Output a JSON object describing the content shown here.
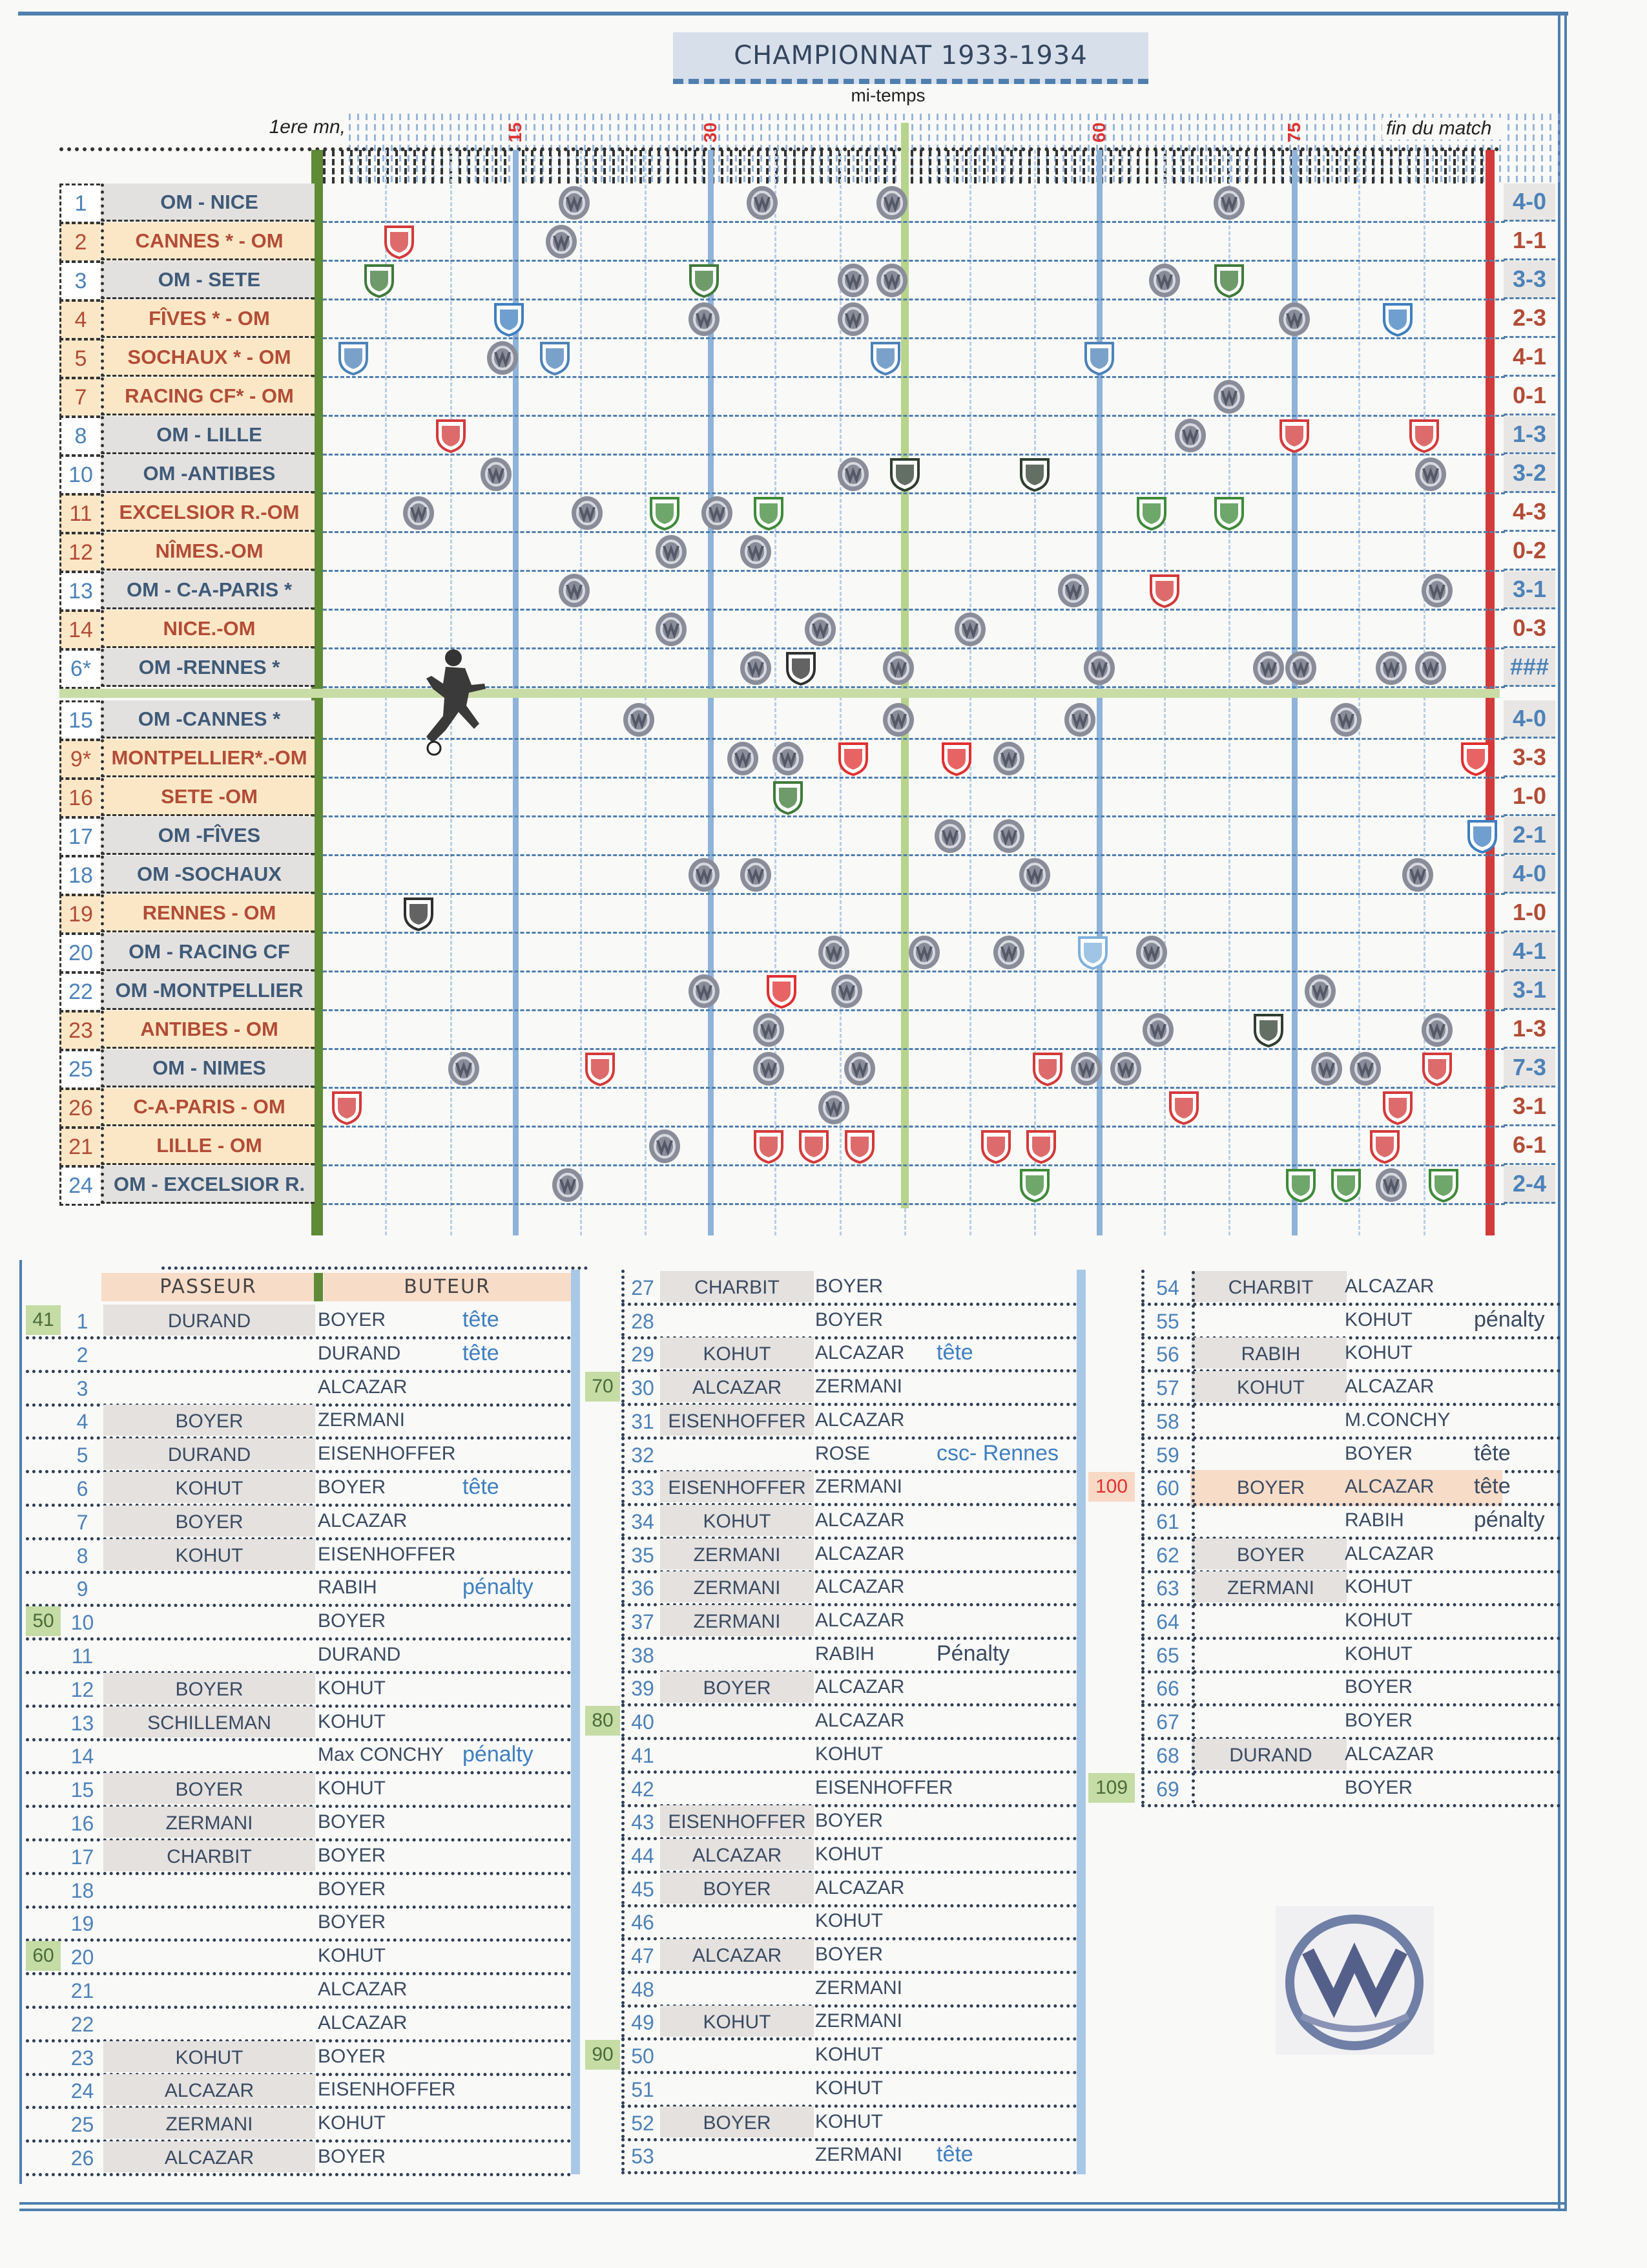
{
  "header": {
    "title": "CHAMPIONNAT 1933-1934",
    "halftime_label": "mi-temps",
    "first_minute_label": "1ere mn,",
    "end_label": "fin du match",
    "minute_marks": [
      {
        "label": "15",
        "minute": 15
      },
      {
        "label": "30",
        "minute": 30
      },
      {
        "label": "60",
        "minute": 60
      },
      {
        "label": "75",
        "minute": 75
      }
    ],
    "halftime_minute": 45,
    "full_time_minute": 90
  },
  "colors": {
    "home_text": "#4d82b8",
    "away_text": "#b24c36",
    "away_bg": "#fbe7c6",
    "start_line": "#5f8a36",
    "halftime_line": "#b7d48c",
    "end_line": "#d33a3a",
    "om_logo": "#8a8d99"
  },
  "matches": [
    {
      "num": "1",
      "label": "OM - NICE",
      "venue": "home",
      "score": "4-0",
      "opp_color": "#d33a3a",
      "goals": [
        {
          "m": 19.5,
          "t": "om"
        },
        {
          "m": 34,
          "t": "om"
        },
        {
          "m": 44,
          "t": "om"
        },
        {
          "m": 70,
          "t": "om"
        }
      ]
    },
    {
      "num": "2",
      "label": "CANNES * - OM",
      "venue": "away",
      "score": "1-1",
      "opp_color": "#d33a3a",
      "goals": [
        {
          "m": 6,
          "t": "opp"
        },
        {
          "m": 18.5,
          "t": "om"
        }
      ]
    },
    {
      "num": "3",
      "label": "OM - SETE",
      "venue": "home",
      "score": "3-3",
      "opp_color": "#3f7a3a",
      "goals": [
        {
          "m": 4.5,
          "t": "opp"
        },
        {
          "m": 29.5,
          "t": "opp"
        },
        {
          "m": 44,
          "t": "om"
        },
        {
          "m": 41,
          "t": "om"
        },
        {
          "m": 65,
          "t": "om"
        },
        {
          "m": 70,
          "t": "opp"
        }
      ]
    },
    {
      "num": "4",
      "label": "FÎVES * - OM",
      "venue": "away",
      "score": "2-3",
      "opp_color": "#3f7fbf",
      "goals": [
        {
          "m": 14.5,
          "t": "opp"
        },
        {
          "m": 29.5,
          "t": "om"
        },
        {
          "m": 41,
          "t": "om"
        },
        {
          "m": 75,
          "t": "om"
        },
        {
          "m": 83,
          "t": "opp"
        }
      ]
    },
    {
      "num": "5",
      "label": "SOCHAUX * - OM",
      "venue": "away",
      "score": "4-1",
      "opp_color": "#4d82b8",
      "goals": [
        {
          "m": 2.5,
          "t": "opp"
        },
        {
          "m": 14,
          "t": "om"
        },
        {
          "m": 18,
          "t": "opp"
        },
        {
          "m": 43.5,
          "t": "opp"
        },
        {
          "m": 60,
          "t": "opp"
        }
      ]
    },
    {
      "num": "7",
      "label": "RACING CF* - OM",
      "venue": "away",
      "score": "0-1",
      "opp_color": "#4d82b8",
      "goals": [
        {
          "m": 70,
          "t": "om"
        }
      ]
    },
    {
      "num": "8",
      "label": "OM - LILLE",
      "venue": "home",
      "score": "1-3",
      "opp_color": "#d33a3a",
      "goals": [
        {
          "m": 10,
          "t": "opp"
        },
        {
          "m": 67,
          "t": "om"
        },
        {
          "m": 75,
          "t": "opp"
        },
        {
          "m": 85,
          "t": "opp"
        }
      ]
    },
    {
      "num": "10",
      "label": "OM -ANTIBES",
      "venue": "home",
      "score": "3-2",
      "opp_color": "#2f3f2f",
      "goals": [
        {
          "m": 13.5,
          "t": "om"
        },
        {
          "m": 41,
          "t": "om"
        },
        {
          "m": 45,
          "t": "opp"
        },
        {
          "m": 55,
          "t": "opp"
        },
        {
          "m": 85.5,
          "t": "om"
        }
      ]
    },
    {
      "num": "11",
      "label": "EXCELSIOR R.-OM",
      "venue": "away",
      "score": "4-3",
      "opp_color": "#3f8a3a",
      "goals": [
        {
          "m": 7.5,
          "t": "om"
        },
        {
          "m": 20.5,
          "t": "om"
        },
        {
          "m": 26.5,
          "t": "opp"
        },
        {
          "m": 30.5,
          "t": "om"
        },
        {
          "m": 34.5,
          "t": "opp"
        },
        {
          "m": 64,
          "t": "opp"
        },
        {
          "m": 70,
          "t": "opp"
        }
      ]
    },
    {
      "num": "12",
      "label": "NÎMES.-OM",
      "venue": "away",
      "score": "0-2",
      "opp_color": "#d33a3a",
      "goals": [
        {
          "m": 27,
          "t": "om"
        },
        {
          "m": 33.5,
          "t": "om"
        }
      ]
    },
    {
      "num": "13",
      "label": "OM - C-A-PARIS *",
      "venue": "home",
      "score": "3-1",
      "opp_color": "#d33a3a",
      "goals": [
        {
          "m": 19.5,
          "t": "om"
        },
        {
          "m": 58,
          "t": "om"
        },
        {
          "m": 65,
          "t": "opp"
        },
        {
          "m": 86,
          "t": "om"
        }
      ]
    },
    {
      "num": "14",
      "label": "NICE.-OM",
      "venue": "away",
      "score": "0-3",
      "opp_color": "#d33a3a",
      "goals": [
        {
          "m": 27,
          "t": "om"
        },
        {
          "m": 38.5,
          "t": "om"
        },
        {
          "m": 50,
          "t": "om"
        }
      ]
    },
    {
      "num": "6*",
      "label": "OM -RENNES *",
      "venue": "home",
      "score": "###",
      "opp_color": "#2f2f2f",
      "goals": [
        {
          "m": 33.5,
          "t": "om"
        },
        {
          "m": 37,
          "t": "opp"
        },
        {
          "m": 44.5,
          "t": "om"
        },
        {
          "m": 60,
          "t": "om"
        },
        {
          "m": 73,
          "t": "om"
        },
        {
          "m": 75.5,
          "t": "om"
        },
        {
          "m": 82.5,
          "t": "om"
        },
        {
          "m": 85.5,
          "t": "om"
        }
      ]
    },
    {
      "num": "15",
      "label": "OM -CANNES *",
      "venue": "home",
      "score": "4-0",
      "opp_color": "#d33a3a",
      "goals": [
        {
          "m": 24.5,
          "t": "om"
        },
        {
          "m": 44.5,
          "t": "om"
        },
        {
          "m": 58.5,
          "t": "om"
        },
        {
          "m": 79,
          "t": "om"
        }
      ]
    },
    {
      "num": "9*",
      "label": "MONTPELLIER*.-OM",
      "venue": "away",
      "score": "3-3",
      "opp_color": "#e03030",
      "goals": [
        {
          "m": 32.5,
          "t": "om"
        },
        {
          "m": 36,
          "t": "om"
        },
        {
          "m": 41,
          "t": "opp"
        },
        {
          "m": 49,
          "t": "opp"
        },
        {
          "m": 53,
          "t": "om"
        },
        {
          "m": 89,
          "t": "opp"
        }
      ]
    },
    {
      "num": "16",
      "label": "SETE  -OM",
      "venue": "away",
      "score": "1-0",
      "opp_color": "#3f7a3a",
      "goals": [
        {
          "m": 36,
          "t": "opp"
        }
      ]
    },
    {
      "num": "17",
      "label": "OM -FÎVES",
      "venue": "home",
      "score": "2-1",
      "opp_color": "#3f7fbf",
      "goals": [
        {
          "m": 48.5,
          "t": "om"
        },
        {
          "m": 53,
          "t": "om"
        },
        {
          "m": 89.5,
          "t": "opp"
        }
      ]
    },
    {
      "num": "18",
      "label": "OM -SOCHAUX",
      "venue": "home",
      "score": "4-0",
      "opp_color": "#4d82b8",
      "goals": [
        {
          "m": 29.5,
          "t": "om"
        },
        {
          "m": 33.5,
          "t": "om"
        },
        {
          "m": 55,
          "t": "om"
        },
        {
          "m": 84.5,
          "t": "om"
        }
      ]
    },
    {
      "num": "19",
      "label": "RENNES  - OM",
      "venue": "away",
      "score": "1-0",
      "opp_color": "#2f2f2f",
      "goals": [
        {
          "m": 7.5,
          "t": "opp"
        }
      ]
    },
    {
      "num": "20",
      "label": "OM - RACING CF",
      "venue": "home",
      "score": "4-1",
      "opp_color": "#7fb0dc",
      "goals": [
        {
          "m": 39.5,
          "t": "om"
        },
        {
          "m": 46.5,
          "t": "om"
        },
        {
          "m": 53,
          "t": "om"
        },
        {
          "m": 59.5,
          "t": "opp"
        },
        {
          "m": 64,
          "t": "om"
        }
      ]
    },
    {
      "num": "22",
      "label": "OM -MONTPELLIER",
      "venue": "home",
      "score": "3-1",
      "opp_color": "#e03030",
      "goals": [
        {
          "m": 29.5,
          "t": "om"
        },
        {
          "m": 35.5,
          "t": "opp"
        },
        {
          "m": 40.5,
          "t": "om"
        },
        {
          "m": 77,
          "t": "om"
        }
      ]
    },
    {
      "num": "23",
      "label": "ANTIBES - OM",
      "venue": "away",
      "score": "1-3",
      "opp_color": "#2f3f2f",
      "goals": [
        {
          "m": 34.5,
          "t": "om"
        },
        {
          "m": 64.5,
          "t": "om"
        },
        {
          "m": 73,
          "t": "opp"
        },
        {
          "m": 86,
          "t": "om"
        }
      ]
    },
    {
      "num": "25",
      "label": "OM - NIMES",
      "venue": "home",
      "score": "7-3",
      "opp_color": "#d33a3a",
      "goals": [
        {
          "m": 11,
          "t": "om"
        },
        {
          "m": 21.5,
          "t": "opp"
        },
        {
          "m": 34.5,
          "t": "om"
        },
        {
          "m": 41.5,
          "t": "om"
        },
        {
          "m": 56,
          "t": "opp"
        },
        {
          "m": 59,
          "t": "om"
        },
        {
          "m": 62,
          "t": "om"
        },
        {
          "m": 77.5,
          "t": "om"
        },
        {
          "m": 80.5,
          "t": "om"
        },
        {
          "m": 86,
          "t": "opp"
        }
      ]
    },
    {
      "num": "26",
      "label": "C-A-PARIS - OM",
      "venue": "away",
      "score": "3-1",
      "opp_color": "#d33a3a",
      "goals": [
        {
          "m": 2,
          "t": "opp"
        },
        {
          "m": 39.5,
          "t": "om"
        },
        {
          "m": 66.5,
          "t": "opp"
        },
        {
          "m": 83,
          "t": "opp"
        }
      ]
    },
    {
      "num": "21",
      "label": "LILLE - OM",
      "venue": "away",
      "score": "6-1",
      "opp_color": "#d33a3a",
      "goals": [
        {
          "m": 26.5,
          "t": "om"
        },
        {
          "m": 34.5,
          "t": "opp"
        },
        {
          "m": 38,
          "t": "opp"
        },
        {
          "m": 41.5,
          "t": "opp"
        },
        {
          "m": 52,
          "t": "opp"
        },
        {
          "m": 55.5,
          "t": "opp"
        },
        {
          "m": 82,
          "t": "opp"
        }
      ]
    },
    {
      "num": "24",
      "label": "OM - EXCELSIOR R.",
      "venue": "home",
      "score": "2-4",
      "opp_color": "#3f8a3a",
      "goals": [
        {
          "m": 19,
          "t": "om"
        },
        {
          "m": 55,
          "t": "opp"
        },
        {
          "m": 75.5,
          "t": "opp"
        },
        {
          "m": 79,
          "t": "opp"
        },
        {
          "m": 82.5,
          "t": "om"
        },
        {
          "m": 86.5,
          "t": "opp"
        }
      ]
    }
  ],
  "scorers": {
    "passeur_header": "PASSEUR",
    "buteur_header": "BUTEUR",
    "goals": [
      {
        "n": "1",
        "passeur": "DURAND",
        "buteur": "BOYER",
        "note": "tête",
        "milestone": "41"
      },
      {
        "n": "2",
        "passeur": "",
        "buteur": "DURAND",
        "note": "tête"
      },
      {
        "n": "3",
        "passeur": "",
        "buteur": "ALCAZAR",
        "note": ""
      },
      {
        "n": "4",
        "passeur": "BOYER",
        "buteur": "ZERMANI",
        "note": ""
      },
      {
        "n": "5",
        "passeur": "DURAND",
        "buteur": "EISENHOFFER",
        "note": ""
      },
      {
        "n": "6",
        "passeur": "KOHUT",
        "buteur": "BOYER",
        "note": "tête"
      },
      {
        "n": "7",
        "passeur": "BOYER",
        "buteur": "ALCAZAR",
        "note": ""
      },
      {
        "n": "8",
        "passeur": "KOHUT",
        "buteur": "EISENHOFFER",
        "note": ""
      },
      {
        "n": "9",
        "passeur": "",
        "buteur": "RABIH",
        "note": "pénalty"
      },
      {
        "n": "10",
        "passeur": "",
        "buteur": "BOYER",
        "note": "",
        "milestone": "50"
      },
      {
        "n": "11",
        "passeur": "",
        "buteur": "DURAND",
        "note": ""
      },
      {
        "n": "12",
        "passeur": "BOYER",
        "buteur": "KOHUT",
        "note": ""
      },
      {
        "n": "13",
        "passeur": "SCHILLEMAN",
        "buteur": "KOHUT",
        "note": ""
      },
      {
        "n": "14",
        "passeur": "",
        "buteur": "Max CONCHY",
        "note": "pénalty"
      },
      {
        "n": "15",
        "passeur": "BOYER",
        "buteur": "KOHUT",
        "note": ""
      },
      {
        "n": "16",
        "passeur": "ZERMANI",
        "buteur": "BOYER",
        "note": ""
      },
      {
        "n": "17",
        "passeur": "CHARBIT",
        "buteur": "BOYER",
        "note": ""
      },
      {
        "n": "18",
        "passeur": "",
        "buteur": "BOYER",
        "note": ""
      },
      {
        "n": "19",
        "passeur": "",
        "buteur": "BOYER",
        "note": ""
      },
      {
        "n": "20",
        "passeur": "",
        "buteur": "KOHUT",
        "note": "",
        "milestone": "60"
      },
      {
        "n": "21",
        "passeur": "",
        "buteur": "ALCAZAR",
        "note": ""
      },
      {
        "n": "22",
        "passeur": "",
        "buteur": "ALCAZAR",
        "note": ""
      },
      {
        "n": "23",
        "passeur": "KOHUT",
        "buteur": "BOYER",
        "note": ""
      },
      {
        "n": "24",
        "passeur": "ALCAZAR",
        "buteur": "EISENHOFFER",
        "note": ""
      },
      {
        "n": "25",
        "passeur": "ZERMANI",
        "buteur": "KOHUT",
        "note": ""
      },
      {
        "n": "26",
        "passeur": "ALCAZAR",
        "buteur": "BOYER",
        "note": ""
      },
      {
        "n": "27",
        "passeur": "CHARBIT",
        "buteur": "BOYER",
        "note": ""
      },
      {
        "n": "28",
        "passeur": "",
        "buteur": "BOYER",
        "note": ""
      },
      {
        "n": "29",
        "passeur": "KOHUT",
        "buteur": "ALCAZAR",
        "note": "tête"
      },
      {
        "n": "30",
        "passeur": "ALCAZAR",
        "buteur": "ZERMANI",
        "note": "",
        "milestone": "70"
      },
      {
        "n": "31",
        "passeur": "EISENHOFFER",
        "buteur": "ALCAZAR",
        "note": ""
      },
      {
        "n": "32",
        "passeur": "",
        "buteur": "ROSE",
        "note": "csc- Rennes"
      },
      {
        "n": "33",
        "passeur": "EISENHOFFER",
        "buteur": "ZERMANI",
        "note": ""
      },
      {
        "n": "34",
        "passeur": "KOHUT",
        "buteur": "ALCAZAR",
        "note": ""
      },
      {
        "n": "35",
        "passeur": "ZERMANI",
        "buteur": "ALCAZAR",
        "note": ""
      },
      {
        "n": "36",
        "passeur": "ZERMANI",
        "buteur": "ALCAZAR",
        "note": ""
      },
      {
        "n": "37",
        "passeur": "ZERMANI",
        "buteur": "ALCAZAR",
        "note": ""
      },
      {
        "n": "38",
        "passeur": "",
        "buteur": "RABIH",
        "note": "Pénalty"
      },
      {
        "n": "39",
        "passeur": "BOYER",
        "buteur": "ALCAZAR",
        "note": ""
      },
      {
        "n": "40",
        "passeur": "",
        "buteur": "ALCAZAR",
        "note": "",
        "milestone": "80"
      },
      {
        "n": "41",
        "passeur": "",
        "buteur": "KOHUT",
        "note": ""
      },
      {
        "n": "42",
        "passeur": "",
        "buteur": "EISENHOFFER",
        "note": ""
      },
      {
        "n": "43",
        "passeur": "EISENHOFFER",
        "buteur": "BOYER",
        "note": ""
      },
      {
        "n": "44",
        "passeur": "ALCAZAR",
        "buteur": "KOHUT",
        "note": ""
      },
      {
        "n": "45",
        "passeur": "BOYER",
        "buteur": "ALCAZAR",
        "note": ""
      },
      {
        "n": "46",
        "passeur": "",
        "buteur": "KOHUT",
        "note": ""
      },
      {
        "n": "47",
        "passeur": "ALCAZAR",
        "buteur": "BOYER",
        "note": ""
      },
      {
        "n": "48",
        "passeur": "",
        "buteur": "ZERMANI",
        "note": ""
      },
      {
        "n": "49",
        "passeur": "KOHUT",
        "buteur": "ZERMANI",
        "note": ""
      },
      {
        "n": "50",
        "passeur": "",
        "buteur": "KOHUT",
        "note": "",
        "milestone": "90"
      },
      {
        "n": "51",
        "passeur": "",
        "buteur": "KOHUT",
        "note": ""
      },
      {
        "n": "52",
        "passeur": "BOYER",
        "buteur": "KOHUT",
        "note": ""
      },
      {
        "n": "53",
        "passeur": "",
        "buteur": "ZERMANI",
        "note": "tête"
      },
      {
        "n": "54",
        "passeur": "CHARBIT",
        "buteur": "ALCAZAR",
        "note": ""
      },
      {
        "n": "55",
        "passeur": "",
        "buteur": "KOHUT",
        "note": "pénalty"
      },
      {
        "n": "56",
        "passeur": "RABIH",
        "buteur": "KOHUT",
        "note": ""
      },
      {
        "n": "57",
        "passeur": "KOHUT",
        "buteur": "ALCAZAR",
        "note": ""
      },
      {
        "n": "58",
        "passeur": "",
        "buteur": "M.CONCHY",
        "note": ""
      },
      {
        "n": "59",
        "passeur": "",
        "buteur": "BOYER",
        "note": "tête"
      },
      {
        "n": "60",
        "passeur": "BOYER",
        "buteur": "ALCAZAR",
        "note": "tête",
        "milestone": "100",
        "highlight": true
      },
      {
        "n": "61",
        "passeur": "",
        "buteur": "RABIH",
        "note": "pénalty"
      },
      {
        "n": "62",
        "passeur": "BOYER",
        "buteur": "ALCAZAR",
        "note": ""
      },
      {
        "n": "63",
        "passeur": "ZERMANI",
        "buteur": "KOHUT",
        "note": ""
      },
      {
        "n": "64",
        "passeur": "",
        "buteur": "KOHUT",
        "note": ""
      },
      {
        "n": "65",
        "passeur": "",
        "buteur": "KOHUT",
        "note": ""
      },
      {
        "n": "66",
        "passeur": "",
        "buteur": "BOYER",
        "note": ""
      },
      {
        "n": "67",
        "passeur": "",
        "buteur": "BOYER",
        "note": ""
      },
      {
        "n": "68",
        "passeur": "DURAND",
        "buteur": "ALCAZAR",
        "note": ""
      },
      {
        "n": "69",
        "passeur": "",
        "buteur": "BOYER",
        "note": "",
        "milestone": "109"
      }
    ]
  }
}
